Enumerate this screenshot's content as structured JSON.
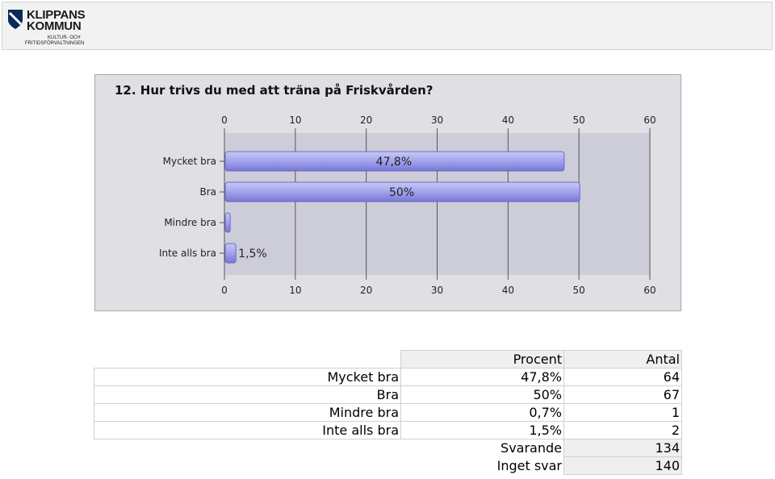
{
  "header": {
    "logo_line1": "KLIPPANS",
    "logo_line2": "KOMMUN",
    "logo_sub1": "KULTUR- OCH",
    "logo_sub2": "FRITIDSFÖRVALTNINGEN"
  },
  "chart_data": {
    "type": "bar",
    "orientation": "horizontal",
    "title": "12. Hur trivs du med att träna på Friskvården?",
    "categories": [
      "Mycket bra",
      "Bra",
      "Mindre bra",
      "Inte alls bra"
    ],
    "values": [
      47.8,
      50,
      0.7,
      1.5
    ],
    "data_labels": [
      "47,8%",
      "50%",
      "",
      "1,5%"
    ],
    "xlim": [
      0,
      60
    ],
    "x_ticks": [
      "0",
      "10",
      "20",
      "30",
      "40",
      "50",
      "60"
    ],
    "grid": true,
    "xlabel": "",
    "ylabel": "",
    "colors": {
      "bar": "#9c9ce8",
      "bar_edge": "#6a6ac4",
      "plot_bg": "#cdcdda",
      "panel_bg": "#e0dfe3"
    }
  },
  "table": {
    "headers": [
      "Procent",
      "Antal"
    ],
    "rows": [
      {
        "label": "Mycket bra",
        "percent": "47,8%",
        "count": "64"
      },
      {
        "label": "Bra",
        "percent": "50%",
        "count": "67"
      },
      {
        "label": "Mindre bra",
        "percent": "0,7%",
        "count": "1"
      },
      {
        "label": "Inte alls bra",
        "percent": "1,5%",
        "count": "2"
      }
    ],
    "summary": [
      {
        "label": "Svarande",
        "value": "134"
      },
      {
        "label": "Inget svar",
        "value": "140"
      }
    ]
  }
}
